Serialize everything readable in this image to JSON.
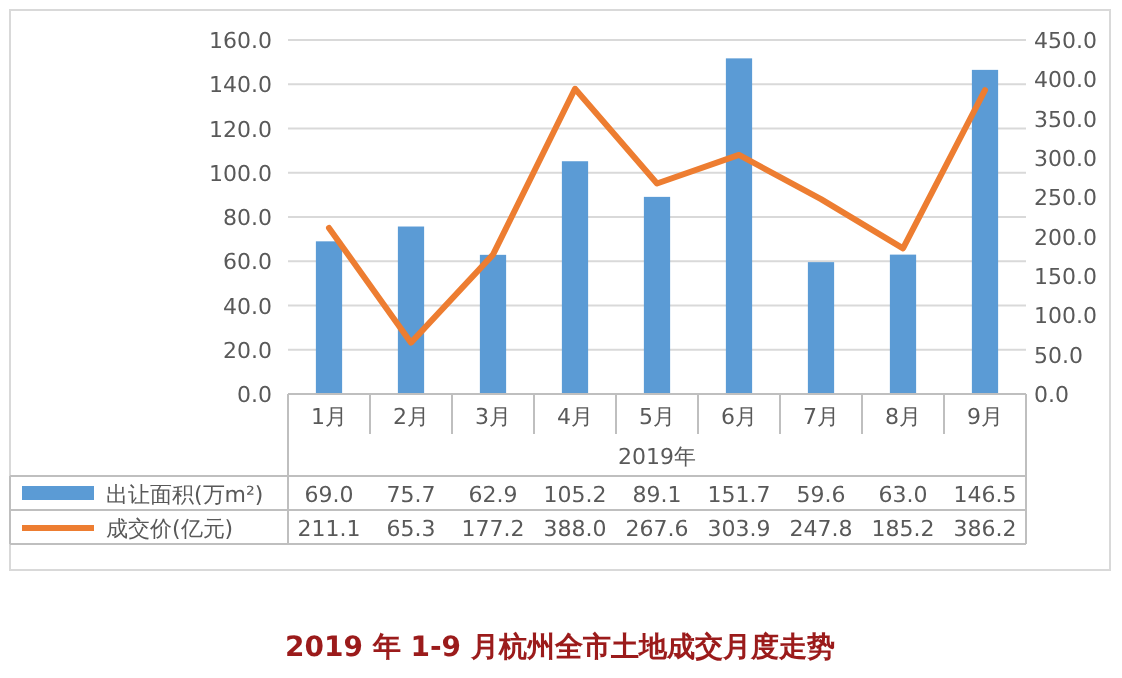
{
  "chart_data": {
    "type": "bar",
    "title": "2019 年 1-9 月杭州全市土地成交月度走势",
    "xlabel": "2019年",
    "categories": [
      "1月",
      "2月",
      "3月",
      "4月",
      "5月",
      "6月",
      "7月",
      "8月",
      "9月"
    ],
    "series": [
      {
        "name": "出让面积(万m²)",
        "color": "#5b9bd5",
        "values": [
          69.0,
          75.7,
          62.9,
          105.2,
          89.1,
          151.7,
          59.6,
          63.0,
          146.5
        ],
        "value_labels": [
          "69.0",
          "75.7",
          "62.9",
          "105.2",
          "89.1",
          "151.7",
          "59.6",
          "63.0",
          "146.5"
        ]
      },
      {
        "name": "成交价(亿元)",
        "type": "line",
        "axis": "y2",
        "color": "#ed7d31",
        "values": [
          211.1,
          65.3,
          177.2,
          388.0,
          267.6,
          303.9,
          247.8,
          185.2,
          386.2
        ],
        "value_labels": [
          "211.1",
          "65.3",
          "177.2",
          "388.0",
          "267.6",
          "303.9",
          "247.8",
          "185.2",
          "386.2"
        ]
      }
    ],
    "ylim": [
      0,
      160
    ],
    "yticks": [
      {
        "value": 0,
        "label": "0.0"
      },
      {
        "value": 20,
        "label": "20.0"
      },
      {
        "value": 40,
        "label": "40.0"
      },
      {
        "value": 60,
        "label": "60.0"
      },
      {
        "value": 80,
        "label": "80.0"
      },
      {
        "value": 100,
        "label": "100.0"
      },
      {
        "value": 120,
        "label": "120.0"
      },
      {
        "value": 140,
        "label": "140.0"
      },
      {
        "value": 160,
        "label": "160.0"
      }
    ],
    "y2lim": [
      0,
      450
    ],
    "y2ticks": [
      {
        "value": 0,
        "label": "0.0"
      },
      {
        "value": 50,
        "label": "50.0"
      },
      {
        "value": 100,
        "label": "100.0"
      },
      {
        "value": 150,
        "label": "150.0"
      },
      {
        "value": 200,
        "label": "200.0"
      },
      {
        "value": 250,
        "label": "250.0"
      },
      {
        "value": 300,
        "label": "300.0"
      },
      {
        "value": 350,
        "label": "350.0"
      },
      {
        "value": 400,
        "label": "400.0"
      },
      {
        "value": 450,
        "label": "450.0"
      }
    ],
    "grid": "y",
    "legend": "bottom"
  }
}
